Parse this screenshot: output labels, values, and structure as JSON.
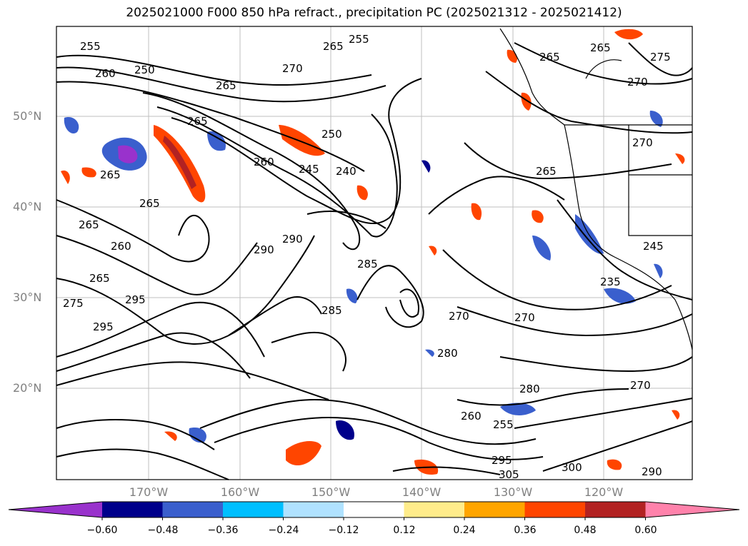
{
  "title": "2025021000 F000 850 hPa refract., precipitation PC (2025021312 - 2025021412)",
  "lat_labels": [
    "50°N",
    "40°N",
    "30°N",
    "20°N"
  ],
  "lon_labels": [
    "170°W",
    "160°W",
    "150°W",
    "140°W",
    "130°W",
    "120°W"
  ],
  "colorbar": {
    "tick_labels": [
      "−0.60",
      "−0.48",
      "−0.36",
      "−0.24",
      "−0.12",
      "0.12",
      "0.24",
      "0.36",
      "0.48",
      "0.60"
    ],
    "colors": [
      "#9932cc",
      "#00008b",
      "#3a5fcd",
      "#00bfff",
      "#b0e2ff",
      "#ffffff",
      "#ffec8b",
      "#ffa500",
      "#ff4500",
      "#b22222",
      "#ff82ab"
    ]
  },
  "contour_labels": [
    "255",
    "260",
    "250",
    "265",
    "270",
    "265",
    "255",
    "265",
    "265",
    "270",
    "275",
    "265",
    "250",
    "245",
    "240",
    "260",
    "265",
    "265",
    "265",
    "265",
    "270",
    "285",
    "290",
    "290",
    "285",
    "260",
    "265",
    "275",
    "295",
    "295",
    "270",
    "270",
    "280",
    "280",
    "260",
    "255",
    "295",
    "305",
    "300",
    "290",
    "270",
    "235",
    "245"
  ],
  "colors": {
    "contour": "#000000",
    "grid": "#bfbfbf",
    "tick_text": "#808080"
  }
}
